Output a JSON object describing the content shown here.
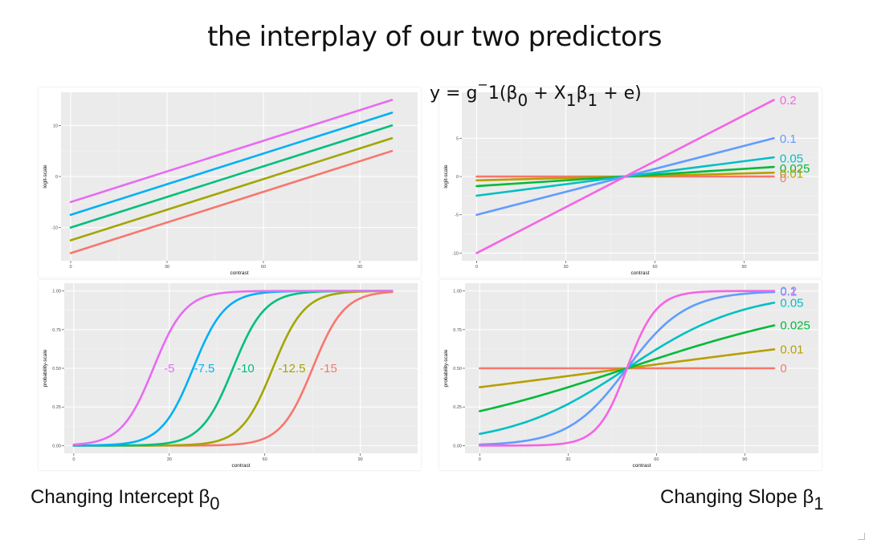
{
  "title": "the interplay of our two predictors",
  "formula": {
    "y": "y",
    "eq": "=",
    "g": "g",
    "inv": "−",
    "one_paren": "1(β",
    "sub0": "0",
    "plus": "+ X",
    "sub1a": "1",
    "beta": "β",
    "sub1b": "1",
    "tail": "+ e)"
  },
  "captions": {
    "left": {
      "text": "Changing Intercept β",
      "sub": "0"
    },
    "right": {
      "text": "Changing Slope β",
      "sub": "1"
    }
  },
  "colors": {
    "panel_bg": "#ebebeb",
    "grid_major": "#ffffff",
    "grid_minor": "#f4f4f4",
    "axis_text": "#4d4d4d"
  },
  "chart_data": [
    {
      "type": "line",
      "id": "tl",
      "xlabel": "contrast",
      "ylabel": "logit-scale",
      "xlim": [
        -3,
        108
      ],
      "ylim": [
        -16.5,
        16.5
      ],
      "xticks": [
        0,
        30,
        60,
        90
      ],
      "yticks": [
        -10,
        0,
        10
      ],
      "ytick_labels": [
        "-10",
        "0",
        "10"
      ],
      "grid": true,
      "series": [
        {
          "color": "#F8766D",
          "x": [
            0,
            100
          ],
          "y": [
            -15,
            5
          ]
        },
        {
          "color": "#A3A500",
          "x": [
            0,
            100
          ],
          "y": [
            -12.5,
            7.5
          ]
        },
        {
          "color": "#00BF7D",
          "x": [
            0,
            100
          ],
          "y": [
            -10,
            10
          ]
        },
        {
          "color": "#00B0F6",
          "x": [
            0,
            100
          ],
          "y": [
            -7.5,
            12.5
          ]
        },
        {
          "color": "#E76BF3",
          "x": [
            0,
            100
          ],
          "y": [
            -5,
            15
          ]
        }
      ],
      "annotations": []
    },
    {
      "type": "line",
      "id": "tr",
      "xlabel": "contrast",
      "ylabel": "logit-scale",
      "xlim": [
        -5,
        115
      ],
      "ylim": [
        -11,
        11
      ],
      "xticks": [
        0,
        30,
        60,
        90
      ],
      "yticks": [
        -10,
        -5,
        0,
        5
      ],
      "ytick_labels": [
        "-10",
        "-5",
        "0",
        "5"
      ],
      "grid": true,
      "series": [
        {
          "color": "#F8766D",
          "x": [
            0,
            100
          ],
          "y": [
            0,
            0
          ]
        },
        {
          "color": "#B79F00",
          "x": [
            0,
            100
          ],
          "y": [
            -0.5,
            0.5
          ]
        },
        {
          "color": "#00BA38",
          "x": [
            0,
            100
          ],
          "y": [
            -1.25,
            1.25
          ]
        },
        {
          "color": "#00BFC4",
          "x": [
            0,
            100
          ],
          "y": [
            -2.5,
            2.5
          ]
        },
        {
          "color": "#619CFF",
          "x": [
            0,
            100
          ],
          "y": [
            -5,
            5
          ]
        },
        {
          "color": "#F564E3",
          "x": [
            0,
            100
          ],
          "y": [
            -10,
            10
          ]
        }
      ],
      "annotations": [
        {
          "text": "0.2",
          "x": 102,
          "y": 9.95,
          "color": "#F564E3"
        },
        {
          "text": "0.1",
          "x": 102,
          "y": 4.95,
          "color": "#619CFF"
        },
        {
          "text": "0.05",
          "x": 102,
          "y": 2.35,
          "color": "#00BFC4"
        },
        {
          "text": "0.025",
          "x": 102,
          "y": 1.05,
          "color": "#00BA38"
        },
        {
          "text": "0.01",
          "x": 102,
          "y": 0.35,
          "color": "#B79F00"
        },
        {
          "text": "0",
          "x": 102,
          "y": -0.2,
          "color": "#F8766D"
        }
      ]
    },
    {
      "type": "line",
      "id": "bl",
      "xlabel": "contrast",
      "ylabel": "probability-scale",
      "xlim": [
        -3,
        108
      ],
      "ylim": [
        -0.05,
        1.05
      ],
      "xticks": [
        0,
        30,
        60,
        90
      ],
      "yticks": [
        0,
        0.25,
        0.5,
        0.75,
        1
      ],
      "ytick_labels": [
        "0.00",
        "0.25",
        "0.50",
        "0.75",
        "1.00"
      ],
      "grid": true,
      "series": [
        {
          "color": "#F8766D",
          "b0": -15,
          "b1": 0.2
        },
        {
          "color": "#A3A500",
          "b0": -12.5,
          "b1": 0.2
        },
        {
          "color": "#00BF7D",
          "b0": -10,
          "b1": 0.2
        },
        {
          "color": "#00B0F6",
          "b0": -7.5,
          "b1": 0.2
        },
        {
          "color": "#E76BF3",
          "b0": -5,
          "b1": 0.2
        }
      ],
      "annotations": [
        {
          "text": "-5",
          "x": 30,
          "y": 0.5,
          "color": "#E76BF3"
        },
        {
          "text": "-7.5",
          "x": 41,
          "y": 0.5,
          "color": "#00B0F6"
        },
        {
          "text": "-10",
          "x": 54,
          "y": 0.5,
          "color": "#00BF7D"
        },
        {
          "text": "-12.5",
          "x": 68.5,
          "y": 0.5,
          "color": "#A3A500"
        },
        {
          "text": "-15",
          "x": 80,
          "y": 0.5,
          "color": "#F8766D"
        }
      ]
    },
    {
      "type": "line",
      "id": "br",
      "xlabel": "contrast",
      "ylabel": "probability-scale",
      "xlim": [
        -5,
        115
      ],
      "ylim": [
        -0.05,
        1.05
      ],
      "xticks": [
        0,
        30,
        60,
        90
      ],
      "yticks": [
        0,
        0.25,
        0.5,
        0.75,
        1
      ],
      "ytick_labels": [
        "0.00",
        "0.25",
        "0.50",
        "0.75",
        "1.00"
      ],
      "grid": true,
      "series": [
        {
          "color": "#F8766D",
          "b0": 0,
          "b1": 0
        },
        {
          "color": "#B79F00",
          "b0": -0.5,
          "b1": 0.01
        },
        {
          "color": "#00BA38",
          "b0": -1.25,
          "b1": 0.025
        },
        {
          "color": "#00BFC4",
          "b0": -2.5,
          "b1": 0.05
        },
        {
          "color": "#619CFF",
          "b0": -5,
          "b1": 0.1
        },
        {
          "color": "#F564E3",
          "b0": -10,
          "b1": 0.2
        }
      ],
      "annotations": [
        {
          "text": "0.2",
          "x": 102,
          "y": 1.0,
          "color": "#F564E3"
        },
        {
          "text": "0.1",
          "x": 102,
          "y": 0.995,
          "color": "#619CFF"
        },
        {
          "text": "0.05",
          "x": 102,
          "y": 0.924,
          "color": "#00BFC4"
        },
        {
          "text": "0.025",
          "x": 102,
          "y": 0.777,
          "color": "#00BA38"
        },
        {
          "text": "0.01",
          "x": 102,
          "y": 0.622,
          "color": "#B79F00"
        },
        {
          "text": "0",
          "x": 102,
          "y": 0.5,
          "color": "#F8766D"
        }
      ]
    }
  ]
}
